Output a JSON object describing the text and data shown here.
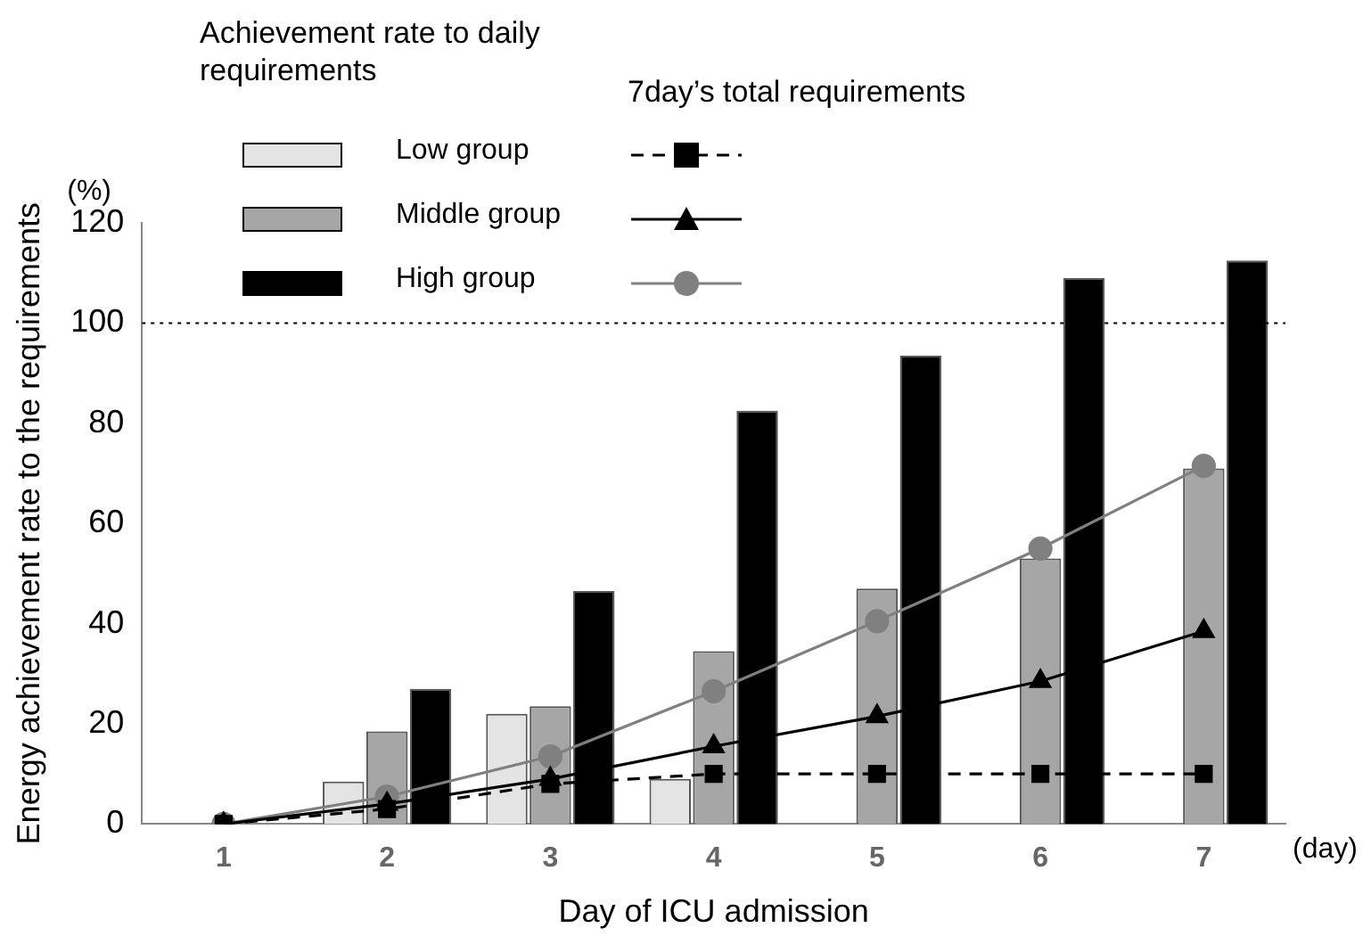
{
  "chart_data": {
    "type": "bar",
    "ylabel": "Energy achievement rate to the requirements",
    "xlabel": "Day of ICU admission",
    "legend_title": "Achievement rate to daily requirements",
    "categories": [
      "1",
      "2",
      "3",
      "4",
      "5",
      "6",
      "7"
    ],
    "series": [
      {
        "name": "Low group",
        "color": "#e4e4e4",
        "values": [
          0,
          8.5,
          22,
          9,
          0,
          0,
          0
        ]
      },
      {
        "name": "Middle group",
        "color": "#a6a6a6",
        "values": [
          0,
          18.5,
          23.5,
          34.5,
          47,
          53,
          71
        ]
      },
      {
        "name": "High group",
        "color": "#000000",
        "values": [
          0,
          27,
          46.5,
          82.5,
          93.5,
          109,
          112.5
        ]
      },
      {
        "type": "line",
        "color": "#000000",
        "marker": "square",
        "line_style": "dashed",
        "values": [
          0,
          3,
          8,
          10,
          10,
          10,
          10
        ]
      },
      {
        "type": "line",
        "color": "#000000",
        "marker": "triangle",
        "line_style": "solid",
        "values": [
          0,
          4,
          9,
          15.5,
          21.5,
          28.5,
          38.5
        ]
      },
      {
        "type": "line",
        "color": "#808080",
        "marker": "circle",
        "line_style": "solid",
        "values": [
          0,
          5.5,
          13.5,
          26.5,
          40.5,
          55,
          71.5
        ]
      }
    ],
    "ylim": [
      0,
      120
    ],
    "yticks": [
      0,
      20,
      40,
      60,
      80,
      100,
      120
    ],
    "grid": false,
    "legend": "top left",
    "ref_lines": [
      {
        "axis": "y",
        "value": 100,
        "line_style": "dotted",
        "color": "#000000"
      }
    ],
    "annotations": [
      "7day’s total requirements",
      "(%)",
      "(day)"
    ]
  }
}
